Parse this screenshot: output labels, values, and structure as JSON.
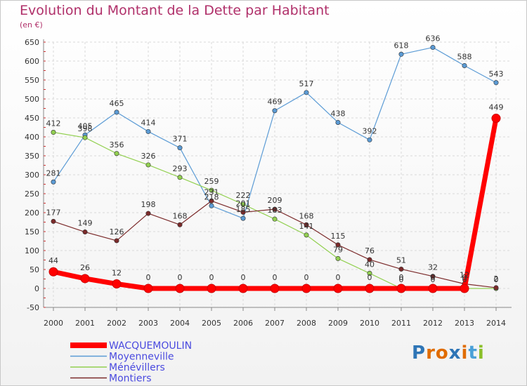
{
  "chart_data": {
    "type": "line",
    "title": "Evolution du Montant de la Dette par Habitant",
    "unit": "(en €)",
    "x": [
      "2000",
      "2001",
      "2002",
      "2003",
      "2004",
      "2005",
      "2006",
      "2007",
      "2008",
      "2009",
      "2010",
      "2011",
      "2012",
      "2013",
      "2014"
    ],
    "yticks": [
      650,
      600,
      550,
      500,
      450,
      400,
      350,
      300,
      250,
      200,
      150,
      100,
      50,
      0,
      -50
    ],
    "ylim": [
      -50,
      650
    ],
    "grid": true,
    "legend_position": "bottom-left",
    "series": [
      {
        "name": "WACQUEMOULIN",
        "color": "#ff0000",
        "values": [
          44,
          26,
          12,
          0,
          0,
          0,
          0,
          0,
          0,
          0,
          0,
          0,
          0,
          0,
          449
        ],
        "labels": [
          "44",
          "26",
          "12",
          "0",
          "0",
          "0",
          "0",
          "0",
          "0",
          "0",
          "0",
          "0",
          "0",
          "0",
          "449"
        ]
      },
      {
        "name": "Moyenneville",
        "color": "#5b9bd5",
        "values": [
          281,
          405,
          465,
          414,
          371,
          218,
          185,
          469,
          517,
          438,
          392,
          618,
          636,
          588,
          543
        ],
        "labels": [
          "281",
          "405",
          "465",
          "414",
          "371",
          "218",
          "185",
          "469",
          "517",
          "438",
          "392",
          "618",
          "636",
          "588",
          "543"
        ]
      },
      {
        "name": "Ménévillers",
        "color": "#92d050",
        "values": [
          412,
          398,
          356,
          326,
          293,
          259,
          222,
          183,
          141,
          79,
          40,
          0,
          0,
          0,
          0
        ],
        "labels": [
          "412",
          "398",
          "356",
          "326",
          "293",
          "259",
          "222",
          "183",
          "141",
          "79",
          "40",
          "0",
          "0",
          "0",
          "0"
        ]
      },
      {
        "name": "Montiers",
        "color": "#7b2a2a",
        "values": [
          177,
          149,
          126,
          198,
          168,
          231,
          201,
          209,
          168,
          115,
          76,
          51,
          32,
          12,
          2
        ],
        "labels": [
          "177",
          "149",
          "126",
          "198",
          "168",
          "231",
          "201",
          "209",
          "168",
          "115",
          "76",
          "51",
          "32",
          "12",
          "2"
        ]
      }
    ]
  },
  "logo": {
    "text": "Proxiti"
  }
}
